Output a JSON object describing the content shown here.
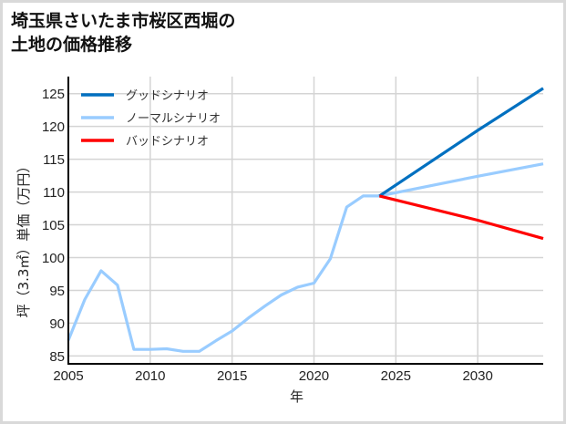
{
  "chart_data": {
    "type": "line",
    "title": "埼玉県さいたま市桜区西堀の\n土地の価格推移",
    "xlabel": "年",
    "ylabel": "坪（3.3㎡）単価（万円）",
    "xlim": [
      2005,
      2034
    ],
    "ylim": [
      83.8,
      127.6
    ],
    "xticks": [
      2005,
      2010,
      2015,
      2020,
      2025,
      2030
    ],
    "yticks": [
      85,
      90,
      95,
      100,
      105,
      110,
      115,
      120,
      125
    ],
    "grid": true,
    "legend_position": "upper left",
    "series": [
      {
        "name": "グッドシナリオ",
        "color": "#0070c0",
        "x": [
          2024,
          2030,
          2034
        ],
        "values": [
          109.4,
          119.4,
          125.8
        ]
      },
      {
        "name": "ノーマルシナリオ",
        "color": "#99ccff",
        "x": [
          2005,
          2006,
          2007,
          2008,
          2009,
          2010,
          2011,
          2012,
          2013,
          2014,
          2015,
          2016,
          2017,
          2018,
          2019,
          2020,
          2021,
          2022,
          2023,
          2024,
          2030,
          2034
        ],
        "values": [
          87.4,
          93.6,
          98.0,
          95.8,
          86.0,
          86.0,
          86.1,
          85.7,
          85.7,
          87.3,
          88.8,
          90.8,
          92.6,
          94.3,
          95.5,
          96.1,
          99.8,
          107.7,
          109.4,
          109.4,
          112.4,
          114.3
        ]
      },
      {
        "name": "バッドシナリオ",
        "color": "#ff0000",
        "x": [
          2024,
          2030,
          2034
        ],
        "values": [
          109.4,
          105.7,
          102.9
        ]
      }
    ]
  }
}
